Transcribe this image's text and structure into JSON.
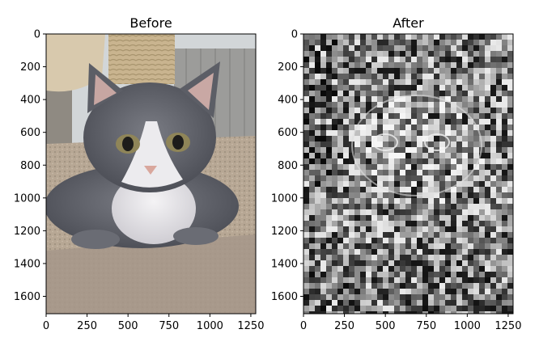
{
  "chart_data": [
    {
      "type": "image",
      "title": "Before",
      "xlabel": "",
      "ylabel": "",
      "xlim": [
        0,
        1280
      ],
      "ylim": [
        1706,
        0
      ],
      "x_ticks": [
        0,
        250,
        500,
        750,
        1000,
        1250
      ],
      "y_ticks": [
        0,
        200,
        400,
        600,
        800,
        1000,
        1200,
        1400,
        1600
      ],
      "image_content": "photo",
      "palette": {
        "sky": "#cfd4d6",
        "fur_dark": "#5e6068",
        "fur_light": "#e9e8ea",
        "carpet": "#b7a794",
        "nose": "#d9a79d",
        "eye": "#8f8558",
        "post": "#c9b48f"
      }
    },
    {
      "type": "image",
      "title": "After",
      "xlabel": "",
      "ylabel": "",
      "xlim": [
        0,
        1280
      ],
      "ylim": [
        1706,
        0
      ],
      "x_ticks": [
        0,
        250,
        500,
        750,
        1000,
        1250
      ],
      "y_ticks": [
        0,
        200,
        400,
        600,
        800,
        1000,
        1200,
        1400,
        1600
      ],
      "image_content": "grayscale-blocks",
      "palette": {
        "dark": "#151515",
        "mid": "#7d7d7d",
        "light": "#d8d8d8"
      }
    }
  ]
}
